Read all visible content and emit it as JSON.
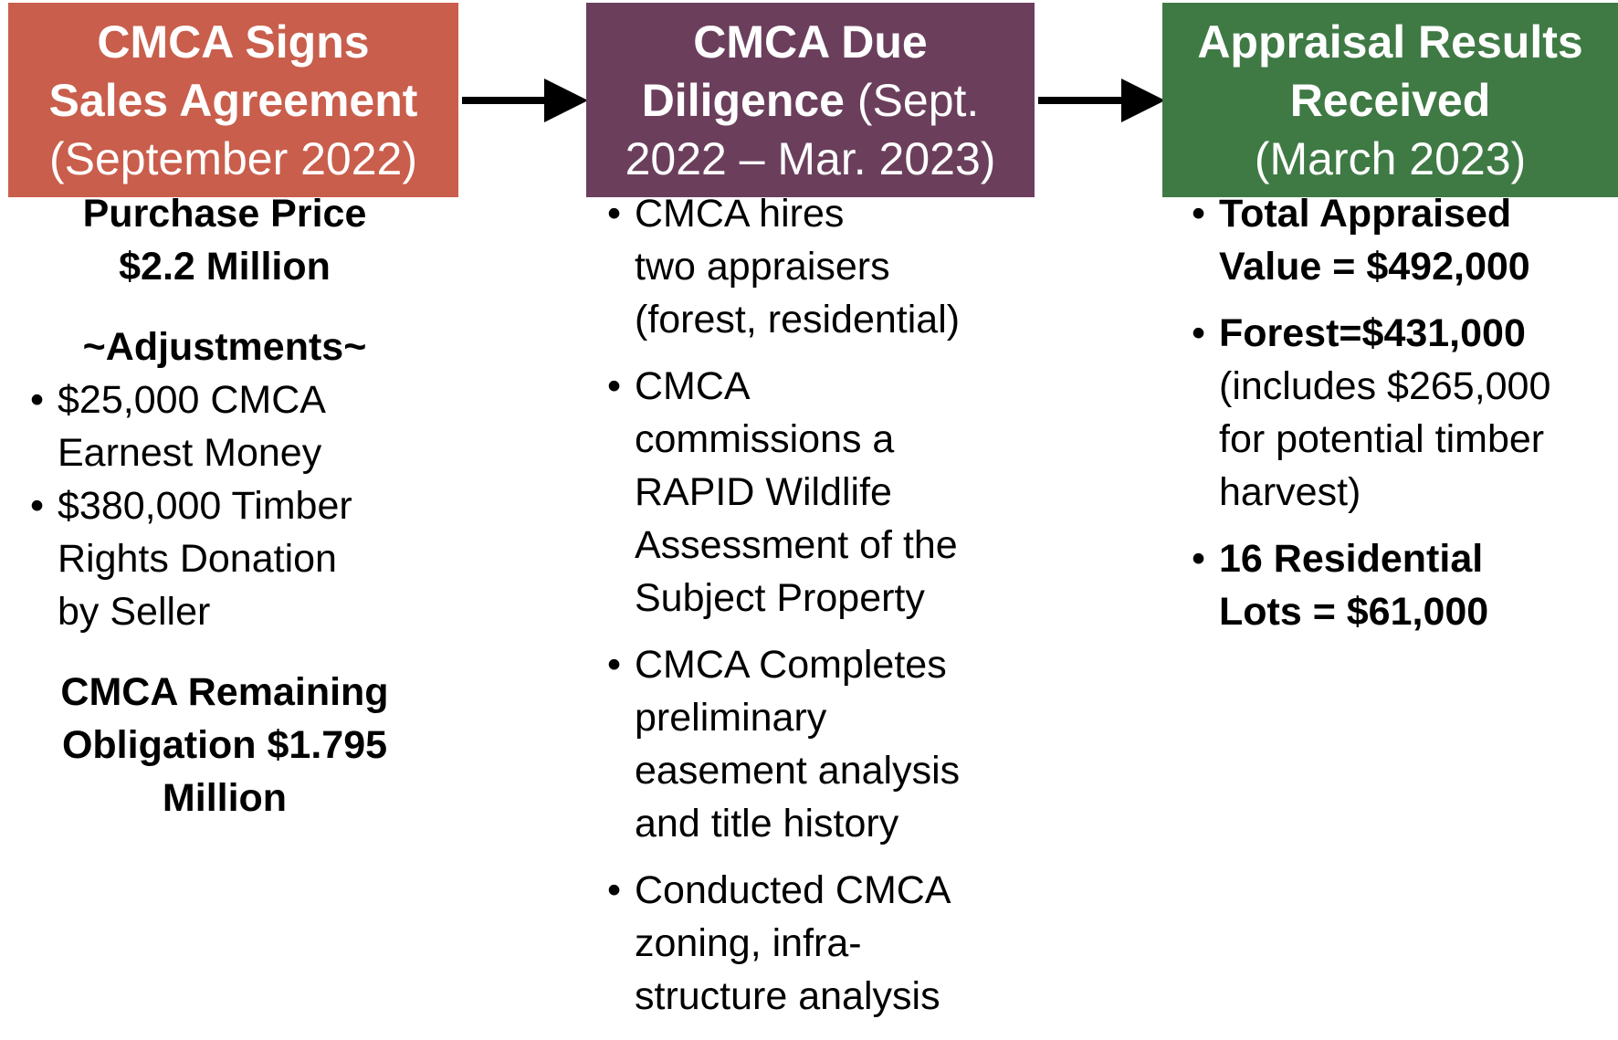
{
  "columns": [
    {
      "header": {
        "color": "#c95e4c",
        "lines": [
          [
            {
              "text": "CMCA Signs",
              "bold": true
            }
          ],
          [
            {
              "text": "Sales Agreement",
              "bold": true
            }
          ],
          [
            {
              "text": "(September 2022)",
              "bold": false
            }
          ]
        ]
      },
      "blocks": [
        {
          "bullet": false,
          "lines": [
            {
              "text": "Purchase Price",
              "bold": true
            },
            {
              "text": "$2.2 Million",
              "bold": true
            }
          ]
        },
        {
          "bullet": false,
          "lines": [
            {
              "text": "~Adjustments~",
              "bold": true
            }
          ]
        },
        {
          "bullet": true,
          "lines": [
            {
              "text": "$25,000 CMCA",
              "bold": false
            },
            {
              "text": "Earnest Money",
              "bold": false
            }
          ]
        },
        {
          "bullet": true,
          "lines": [
            {
              "text": "$380,000 Timber",
              "bold": false
            },
            {
              "text": "Rights Donation",
              "bold": false
            },
            {
              "text": "by Seller",
              "bold": false
            }
          ]
        },
        {
          "bullet": false,
          "lines": [
            {
              "text": "CMCA Remaining",
              "bold": true
            },
            {
              "text": "Obligation $1.795",
              "bold": true
            },
            {
              "text": "Million",
              "bold": true
            }
          ]
        }
      ]
    },
    {
      "header": {
        "color": "#6b3f5c",
        "lines": [
          [
            {
              "text": "CMCA Due",
              "bold": true
            }
          ],
          [
            {
              "text": "Diligence",
              "bold": true
            },
            {
              "text": " (Sept.",
              "bold": false
            }
          ],
          [
            {
              "text": "2022 – Mar. 2023)",
              "bold": false
            }
          ]
        ]
      },
      "blocks": [
        {
          "bullet": true,
          "lines": [
            {
              "text": "CMCA hires",
              "bold": false
            },
            {
              "text": "two appraisers",
              "bold": false
            },
            {
              "text": "(forest, residential)",
              "bold": false
            }
          ]
        },
        {
          "bullet": true,
          "lines": [
            {
              "text": "CMCA",
              "bold": false
            },
            {
              "text": "commissions a",
              "bold": false
            },
            {
              "text": "RAPID Wildlife",
              "bold": false
            },
            {
              "text": "Assessment of the",
              "bold": false
            },
            {
              "text": "Subject Property",
              "bold": false
            }
          ]
        },
        {
          "bullet": true,
          "lines": [
            {
              "text": "CMCA Completes",
              "bold": false
            },
            {
              "text": "preliminary",
              "bold": false
            },
            {
              "text": "easement analysis",
              "bold": false
            },
            {
              "text": "and title history",
              "bold": false
            }
          ]
        },
        {
          "bullet": true,
          "lines": [
            {
              "text": "Conducted CMCA",
              "bold": false
            },
            {
              "text": "zoning, infra-",
              "bold": false
            },
            {
              "text": "structure analysis",
              "bold": false
            }
          ]
        }
      ]
    },
    {
      "header": {
        "color": "#3f7a45",
        "lines": [
          [
            {
              "text": "Appraisal Results",
              "bold": true
            }
          ],
          [
            {
              "text": "Received",
              "bold": true
            }
          ],
          [
            {
              "text": "(March 2023)",
              "bold": false
            }
          ]
        ]
      },
      "blocks": [
        {
          "bullet": true,
          "lines": [
            {
              "text": "Total Appraised",
              "bold": true
            },
            {
              "text": "Value = $492,000",
              "bold": true
            }
          ]
        },
        {
          "bullet": true,
          "lines": [
            {
              "text": "Forest=$431,000",
              "bold": true
            },
            {
              "text": "(includes $265,000",
              "bold": false
            },
            {
              "text": "for potential timber",
              "bold": false
            },
            {
              "text": "harvest)",
              "bold": false
            }
          ]
        },
        {
          "bullet": true,
          "lines": [
            {
              "text": "16 Residential",
              "bold": true
            },
            {
              "text": "Lots = $61,000",
              "bold": true
            }
          ]
        }
      ]
    }
  ]
}
